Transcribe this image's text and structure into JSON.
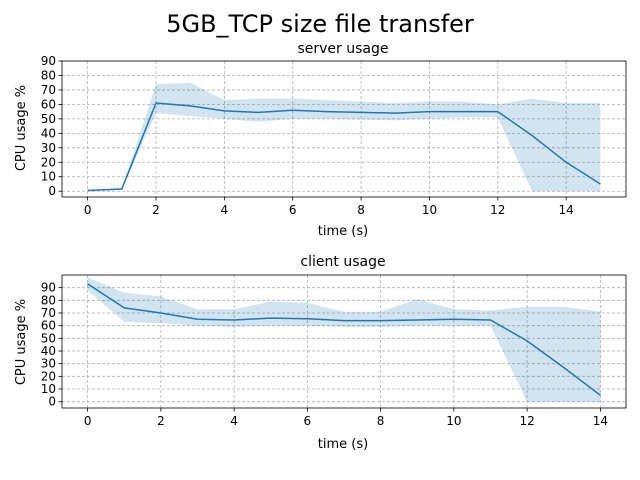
{
  "figure": {
    "suptitle": "5GB_TCP size file transfer"
  },
  "colors": {
    "line": "#1f77b4",
    "band": "#1f77b4",
    "grid": "#b0b0b0",
    "axes": "#000000"
  },
  "chart_data": [
    {
      "type": "line",
      "title": "server usage",
      "xlabel": "time (s)",
      "ylabel": "CPU usage %",
      "xlim": [
        -0.75,
        15.75
      ],
      "ylim": [
        -4,
        90
      ],
      "xticks": [
        0,
        2,
        4,
        6,
        8,
        10,
        12,
        14
      ],
      "yticks": [
        0,
        10,
        20,
        30,
        40,
        50,
        60,
        70,
        80,
        90
      ],
      "grid": true,
      "series": [
        {
          "x": [
            0,
            1,
            2,
            3,
            4,
            5,
            6,
            7,
            8,
            9,
            10,
            11,
            12,
            13,
            14,
            15
          ],
          "y": [
            0.5,
            1.5,
            61,
            59,
            55.5,
            54.5,
            56,
            55,
            54.5,
            54,
            55,
            55,
            55,
            38.5,
            20,
            5
          ],
          "upper": [
            0.5,
            1.5,
            74,
            75,
            63,
            64,
            64,
            63,
            62,
            61,
            62,
            62,
            60,
            64,
            61,
            61
          ],
          "lower": [
            0.5,
            1.5,
            54,
            52,
            50,
            48,
            50,
            50,
            49.5,
            49,
            50,
            51,
            51,
            0,
            0,
            0
          ]
        }
      ]
    },
    {
      "type": "line",
      "title": "client usage",
      "xlabel": "time (s)",
      "ylabel": "CPU usage %",
      "xlim": [
        -0.7,
        14.7
      ],
      "ylim": [
        -5,
        100
      ],
      "xticks": [
        0,
        2,
        4,
        6,
        8,
        10,
        12,
        14
      ],
      "yticks": [
        0,
        10,
        20,
        30,
        40,
        50,
        60,
        70,
        80,
        90
      ],
      "grid": true,
      "series": [
        {
          "x": [
            0,
            1,
            2,
            3,
            4,
            5,
            6,
            7,
            8,
            9,
            10,
            11,
            12,
            13,
            14
          ],
          "y": [
            93,
            74,
            70,
            65,
            64.5,
            66,
            65.5,
            64,
            64,
            64.5,
            65,
            64.5,
            48,
            27,
            5
          ],
          "upper": [
            98,
            86,
            83,
            73,
            73,
            79,
            78,
            71,
            71,
            81,
            73,
            72,
            75,
            75,
            71
          ],
          "lower": [
            88,
            63,
            62,
            60,
            59,
            60,
            60,
            59,
            59,
            60,
            60,
            60,
            0,
            0,
            0
          ]
        }
      ]
    }
  ]
}
